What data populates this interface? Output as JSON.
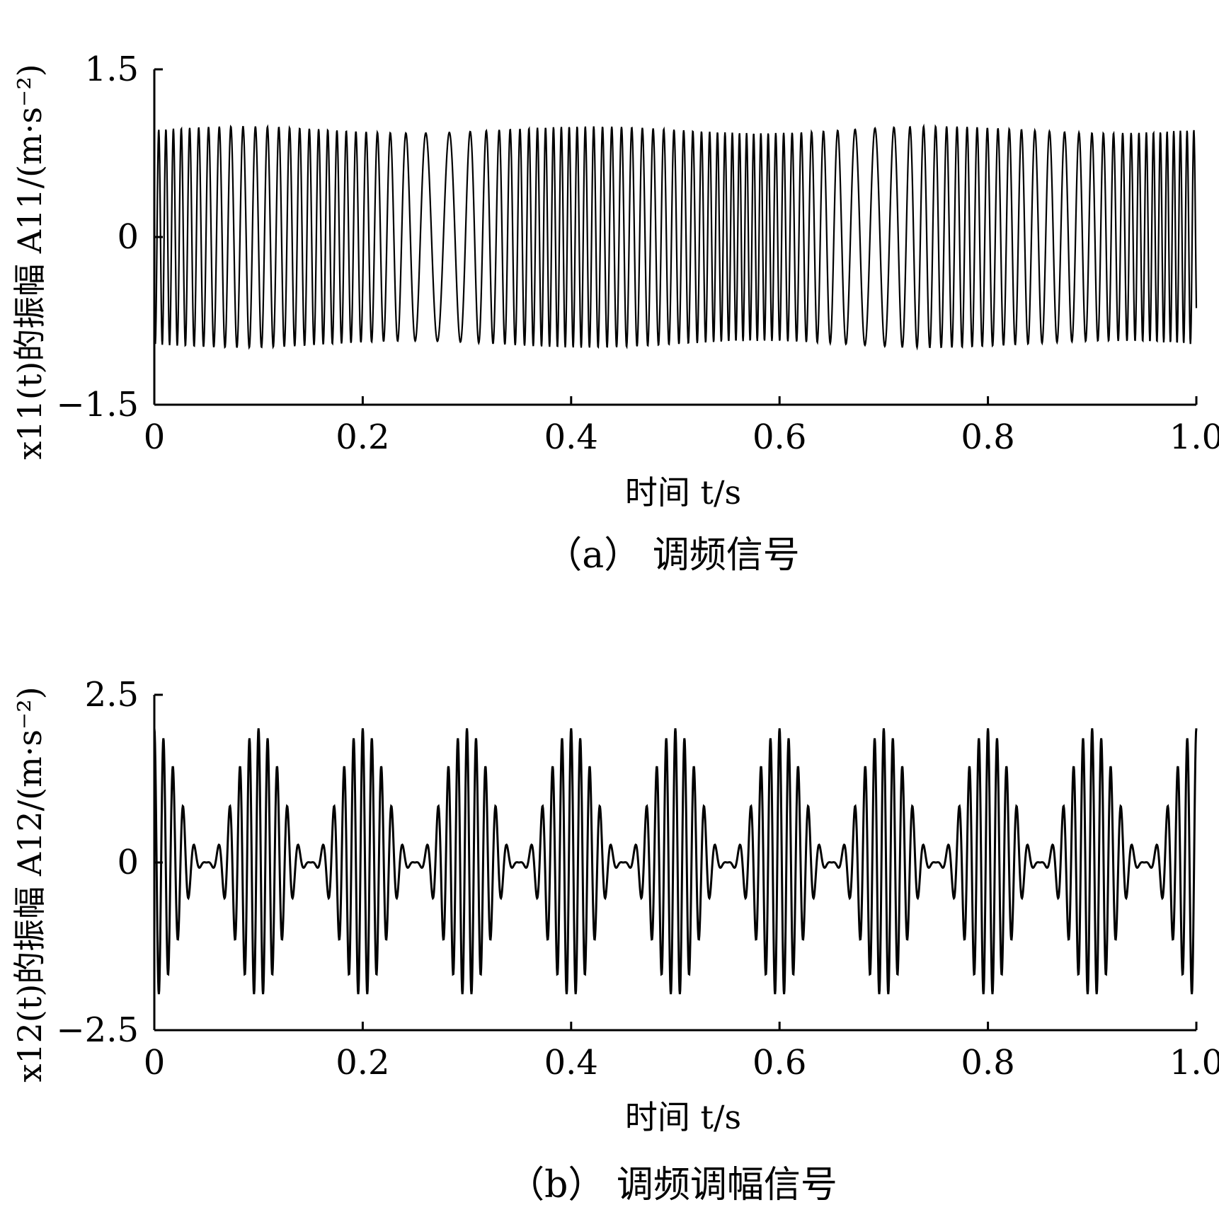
{
  "chart_data": [
    {
      "type": "line",
      "caption": "（a） 调频信号",
      "xlabel": "时间 t/s",
      "ylabel": "x11(t)的振幅 A11/(m·s⁻²)",
      "xlim": [
        0,
        1.0
      ],
      "ylim": [
        -1.5,
        1.5
      ],
      "xticks": [
        "0",
        "0.2",
        "0.4",
        "0.6",
        "0.8",
        "1.0"
      ],
      "yticks": [
        "−1.5",
        "0",
        "1.5"
      ],
      "signal": {
        "kind": "frequency-modulated",
        "amplitude": 1.0,
        "carrier_hz": 100,
        "sample_rate_hz": 3000,
        "modulation_envelope_points": [
          [
            0.0,
            0.95
          ],
          [
            0.24,
            0.9
          ],
          [
            0.28,
            0.95
          ],
          [
            0.32,
            0.98
          ],
          [
            0.5,
            0.95
          ],
          [
            0.74,
            0.98
          ],
          [
            0.78,
            1.0
          ],
          [
            1.0,
            0.98
          ]
        ]
      }
    },
    {
      "type": "line",
      "caption": "（b） 调频调幅信号",
      "xlabel": "时间 t/s",
      "ylabel": "x12(t)的振幅 A12/(m·s⁻²)",
      "xlim": [
        0,
        1.0
      ],
      "ylim": [
        -2.5,
        2.5
      ],
      "xticks": [
        "0",
        "0.2",
        "0.4",
        "0.6",
        "0.8",
        "1.0"
      ],
      "yticks": [
        "−2.5",
        "0",
        "2.5"
      ],
      "signal": {
        "kind": "amplitude-and-frequency-modulated",
        "peak_amplitude": 2.0,
        "envelope_period_s": 0.1,
        "envelope_peak_times_s": [
          0.0,
          0.1,
          0.2,
          0.3,
          0.4,
          0.5,
          0.6,
          0.7,
          0.8,
          0.9,
          1.0
        ],
        "carrier_hz": 100,
        "sample_rate_hz": 3000
      }
    }
  ]
}
